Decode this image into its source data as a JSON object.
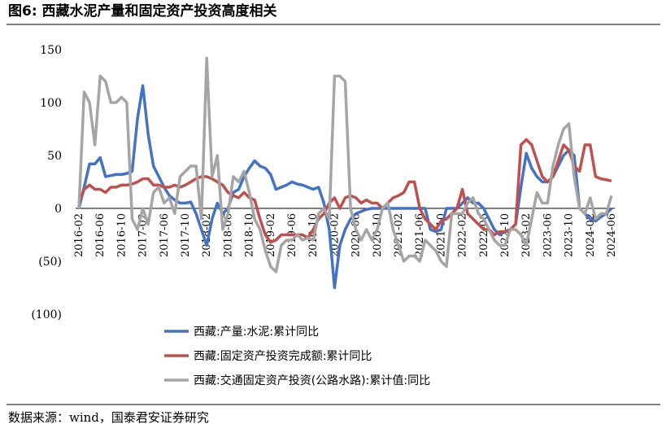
{
  "chart_data": {
    "type": "line",
    "title": "图6:    西藏水泥产量和固定资产投资高度相关",
    "source": "数据来源：wind，国泰君安证券研究",
    "categories": [
      "2016-02",
      null,
      null,
      null,
      "2016-06",
      null,
      null,
      null,
      "2016-10",
      null,
      null,
      null,
      "2017-02",
      null,
      null,
      null,
      "2017-06",
      null,
      null,
      null,
      "2017-10",
      null,
      null,
      null,
      "2018-02",
      null,
      null,
      null,
      "2018-06",
      null,
      null,
      null,
      "2018-10",
      null,
      null,
      null,
      "2019-02",
      null,
      null,
      null,
      "2019-06",
      null,
      null,
      null,
      "2019-10",
      null,
      null,
      null,
      "2020-02",
      null,
      null,
      null,
      "2020-06",
      null,
      null,
      null,
      "2020-10",
      null,
      null,
      null,
      "2021-02",
      null,
      null,
      null,
      "2021-06",
      null,
      null,
      null,
      "2021-10",
      null,
      null,
      null,
      "2022-02",
      null,
      null,
      null,
      "2022-06",
      null,
      null,
      null,
      "2022-10",
      null,
      null,
      null,
      "2023-02",
      null,
      null,
      null,
      "2023-06",
      null,
      null,
      null,
      "2023-10",
      null,
      null,
      null,
      "2024-02",
      null,
      null,
      null,
      "2024-06"
    ],
    "series": [
      {
        "name": "西藏:产量:水泥:累计同比",
        "color": "#4472c4",
        "values": [
          0,
          20,
          42,
          42,
          48,
          30,
          31,
          32,
          32,
          33,
          35,
          85,
          116,
          70,
          40,
          30,
          20,
          12,
          8,
          5,
          5,
          6,
          -5,
          -20,
          -35,
          -10,
          5,
          -5,
          0,
          15,
          18,
          30,
          38,
          45,
          40,
          38,
          32,
          18,
          20,
          22,
          25,
          23,
          22,
          20,
          18,
          20,
          5,
          -20,
          -75,
          -35,
          -20,
          -10,
          -5,
          -3,
          -1,
          0,
          0,
          0,
          0,
          0,
          0,
          0,
          0,
          0,
          0,
          0,
          -20,
          -22,
          -20,
          0,
          0,
          0,
          5,
          10,
          5,
          5,
          0,
          -10,
          -20,
          -25,
          -22,
          -20,
          -15,
          20,
          52,
          38,
          30,
          25,
          25,
          30,
          40,
          50,
          55,
          50,
          0,
          -5,
          -10,
          -12,
          -8,
          -5,
          0
        ]
      },
      {
        "name": "西藏:固定资产投资完成额:累计同比",
        "color": "#c0504d",
        "values": [
          5,
          18,
          22,
          18,
          18,
          15,
          20,
          20,
          22,
          22,
          23,
          25,
          28,
          28,
          22,
          22,
          20,
          20,
          22,
          20,
          22,
          25,
          28,
          30,
          30,
          28,
          25,
          22,
          15,
          12,
          10,
          15,
          10,
          8,
          -10,
          -25,
          -32,
          -30,
          -25,
          -25,
          -25,
          -25,
          -25,
          -28,
          -20,
          -10,
          -5,
          5,
          10,
          0,
          10,
          12,
          10,
          5,
          8,
          5,
          5,
          0,
          5,
          10,
          12,
          15,
          25,
          25,
          0,
          -10,
          -15,
          -20,
          -12,
          -10,
          -5,
          0,
          18,
          -5,
          -10,
          -15,
          -20,
          -20,
          -25,
          -22,
          -22,
          -20,
          -15,
          60,
          65,
          60,
          45,
          30,
          25,
          30,
          45,
          60,
          55,
          40,
          35,
          60,
          60,
          30,
          28,
          27,
          26
        ]
      },
      {
        "name": "西藏:交通固定资产投资(公路水路):累计值:同比",
        "color": "#a5a5a5",
        "values": [
          0,
          110,
          100,
          60,
          125,
          120,
          100,
          100,
          105,
          100,
          -10,
          -20,
          0,
          -15,
          15,
          20,
          5,
          10,
          -5,
          30,
          35,
          40,
          40,
          -10,
          142,
          30,
          50,
          -20,
          -5,
          30,
          25,
          35,
          15,
          -10,
          -20,
          -40,
          -55,
          -60,
          -35,
          -30,
          -30,
          -25,
          -30,
          -28,
          -30,
          -5,
          0,
          -10,
          125,
          125,
          120,
          0,
          -20,
          -30,
          -20,
          -30,
          -20,
          0,
          5,
          -20,
          -35,
          -50,
          -45,
          -45,
          -50,
          -30,
          -35,
          -40,
          -50,
          -55,
          -5,
          -5,
          -5,
          5,
          10,
          -5,
          -10,
          -20,
          -30,
          -35,
          -35,
          -20,
          -20,
          -25,
          -35,
          -10,
          15,
          5,
          5,
          40,
          60,
          75,
          80,
          30,
          0,
          -5,
          10,
          -10,
          -5,
          -5,
          12
        ]
      }
    ],
    "ylim": [
      -100,
      150
    ],
    "yticks": [
      {
        "value": -100,
        "label": "(100)"
      },
      {
        "value": -50,
        "label": "(50)"
      },
      0,
      50,
      100,
      150
    ],
    "negative_tick_color": "#c00000",
    "grid": false,
    "legend": "bottom"
  }
}
